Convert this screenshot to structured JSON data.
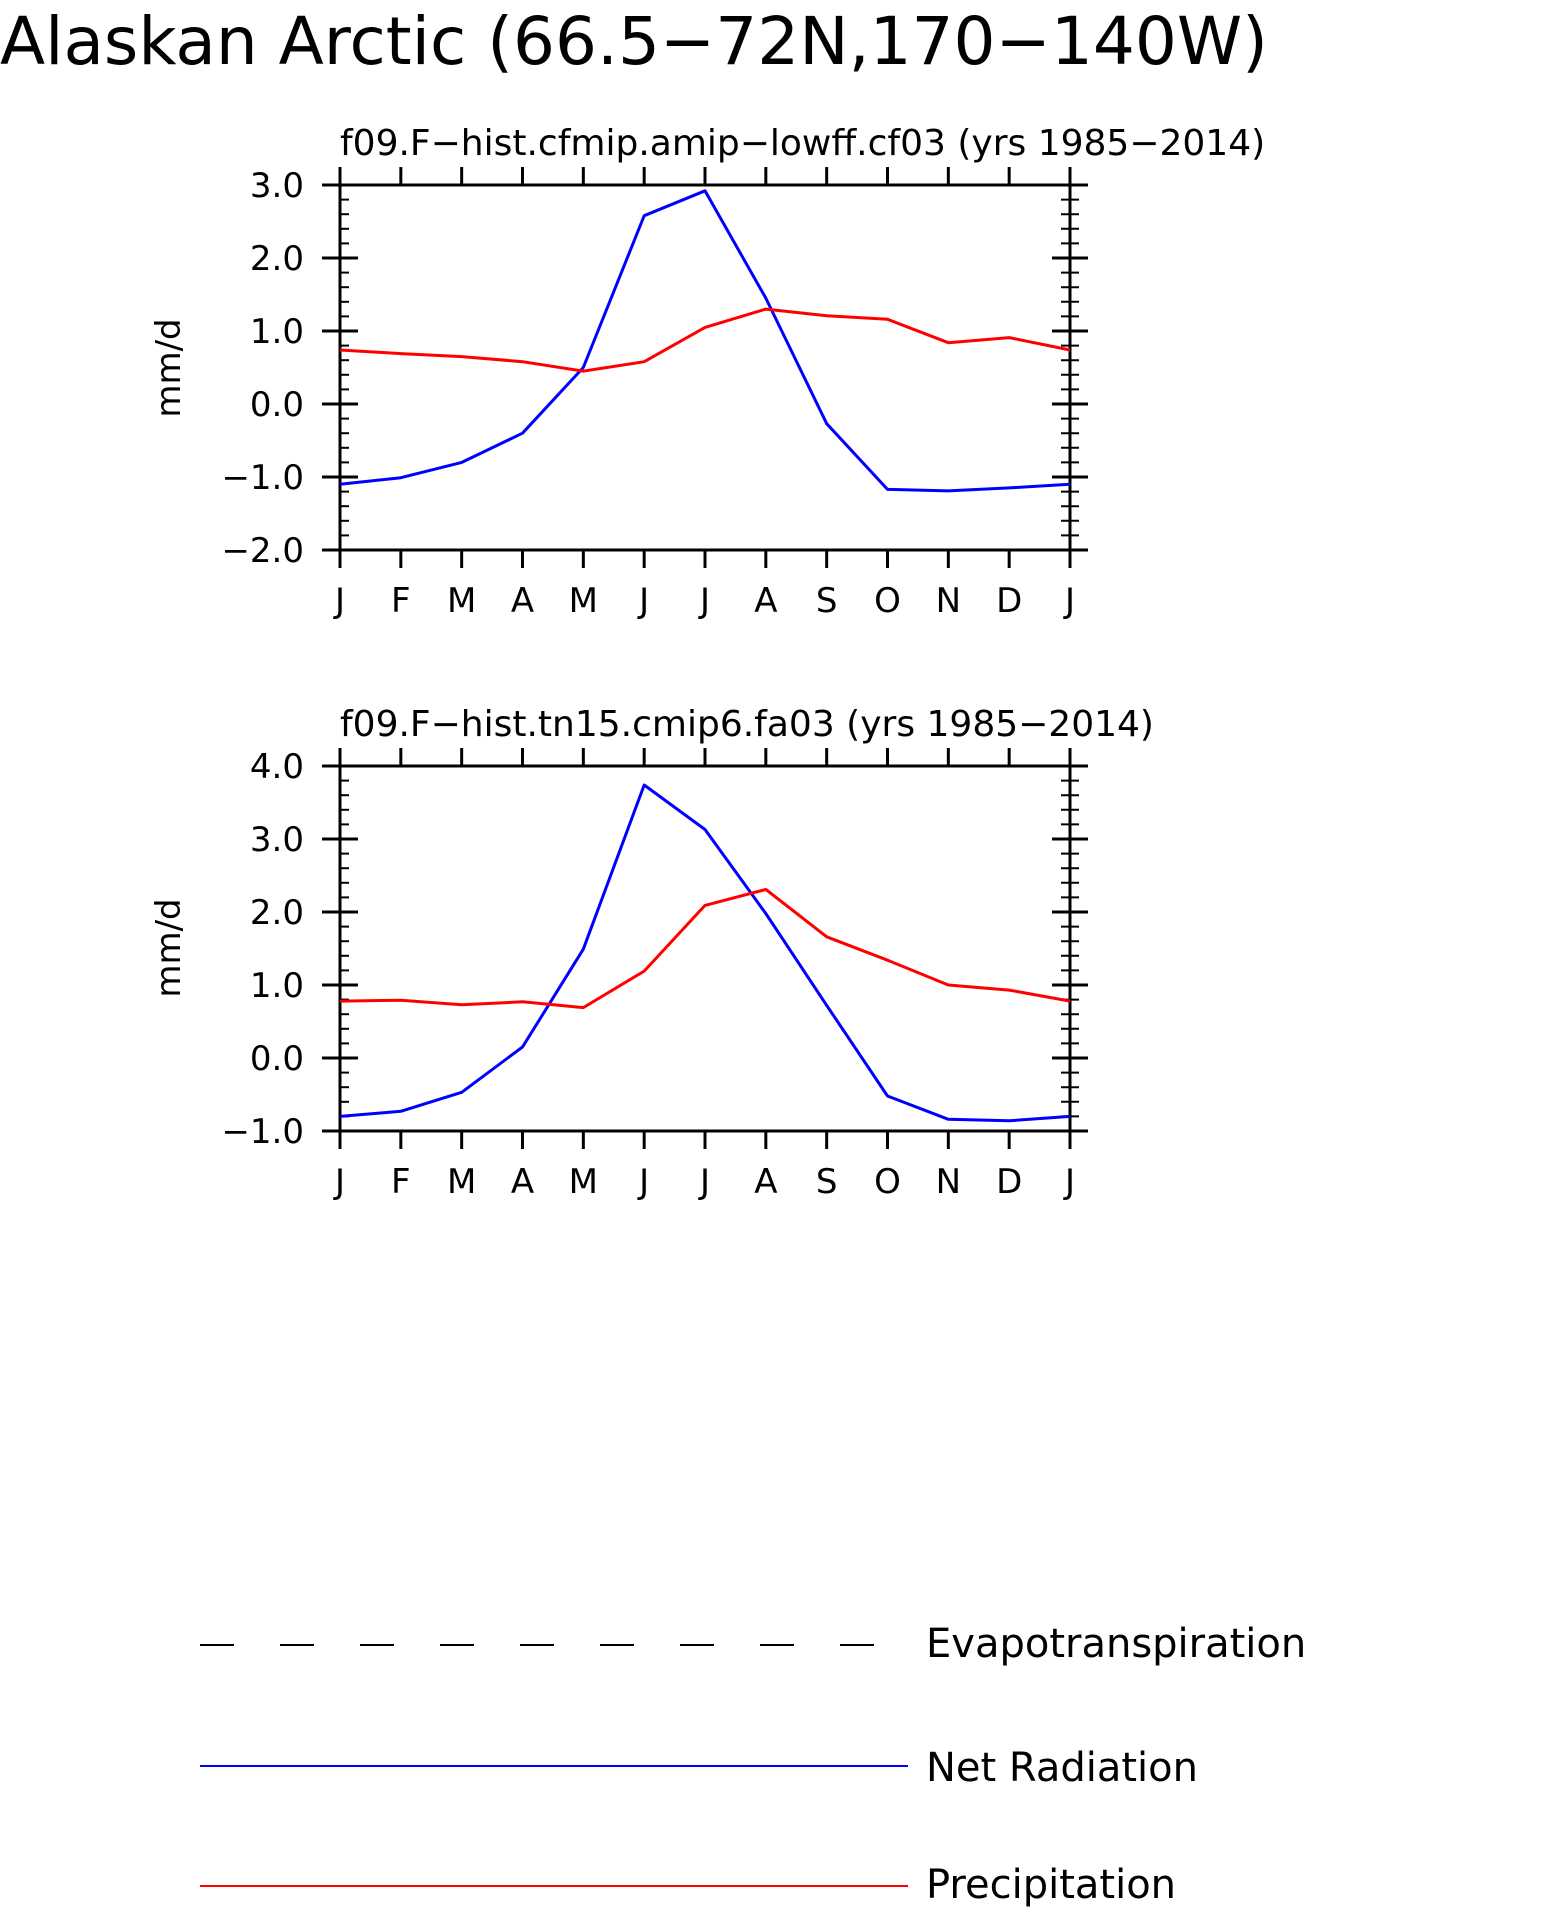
{
  "figure_title": "Alaskan Arctic (66.5−72N,170−140W)",
  "colors": {
    "net_radiation": "#0000ff",
    "precipitation": "#ff0000",
    "evapotranspiration": "#000000",
    "axes": "#000000"
  },
  "legend": {
    "items": [
      {
        "label": "Evapotranspiration",
        "style": "dashed",
        "color": "#000000"
      },
      {
        "label": "Net Radiation",
        "style": "solid",
        "color": "#0000ff"
      },
      {
        "label": "Precipitation",
        "style": "solid",
        "color": "#ff0000"
      }
    ]
  },
  "chart_data": [
    {
      "type": "line",
      "title": "f09.F−hist.cfmip.amip−lowff.cf03 (yrs 1985−2014)",
      "xlabel": "",
      "ylabel": "mm/d",
      "categories": [
        "J",
        "F",
        "M",
        "A",
        "M",
        "J",
        "J",
        "A",
        "S",
        "O",
        "N",
        "D",
        "J"
      ],
      "ylim": [
        -2.0,
        3.0
      ],
      "yticks": [
        "−2.0",
        "−1.0",
        "0.0",
        "1.0",
        "2.0",
        "3.0"
      ],
      "grid": false,
      "series": [
        {
          "name": "Net Radiation",
          "color": "#0000ff",
          "values": [
            -1.1,
            -1.01,
            -0.8,
            -0.4,
            0.5,
            2.58,
            2.92,
            1.45,
            -0.27,
            -1.17,
            -1.19,
            -1.15,
            -1.1
          ]
        },
        {
          "name": "Precipitation",
          "color": "#ff0000",
          "values": [
            0.74,
            0.69,
            0.65,
            0.58,
            0.45,
            0.58,
            1.05,
            1.3,
            1.21,
            1.16,
            0.84,
            0.91,
            0.74
          ]
        }
      ]
    },
    {
      "type": "line",
      "title": "f09.F−hist.tn15.cmip6.fa03 (yrs 1985−2014)",
      "xlabel": "",
      "ylabel": "mm/d",
      "categories": [
        "J",
        "F",
        "M",
        "A",
        "M",
        "J",
        "J",
        "A",
        "S",
        "O",
        "N",
        "D",
        "J"
      ],
      "ylim": [
        -1.0,
        4.0
      ],
      "yticks": [
        "−1.0",
        "0.0",
        "1.0",
        "2.0",
        "3.0",
        "4.0"
      ],
      "grid": false,
      "series": [
        {
          "name": "Net Radiation",
          "color": "#0000ff",
          "values": [
            -0.8,
            -0.73,
            -0.47,
            0.15,
            1.49,
            3.74,
            3.13,
            1.98,
            0.72,
            -0.52,
            -0.84,
            -0.86,
            -0.8
          ]
        },
        {
          "name": "Precipitation",
          "color": "#ff0000",
          "values": [
            0.78,
            0.79,
            0.73,
            0.77,
            0.69,
            1.19,
            2.09,
            2.31,
            1.66,
            1.34,
            1.0,
            0.93,
            0.78
          ]
        }
      ]
    }
  ]
}
